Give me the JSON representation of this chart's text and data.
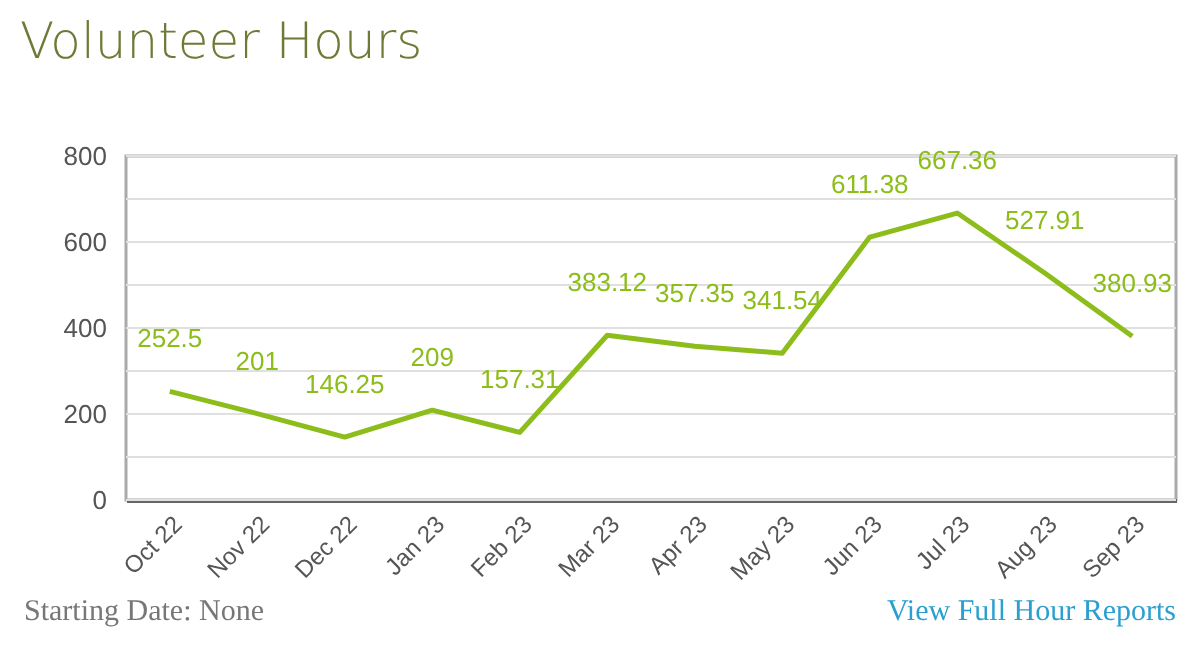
{
  "chart_data": {
    "type": "line",
    "title": "Volunteer Hours",
    "categories": [
      "Oct 22",
      "Nov 22",
      "Dec 22",
      "Jan 23",
      "Feb 23",
      "Mar 23",
      "Apr 23",
      "May 23",
      "Jun 23",
      "Jul 23",
      "Aug 23",
      "Sep 23"
    ],
    "series": [
      {
        "color": "#8cbd1a",
        "values": [
          252.5,
          201,
          146.25,
          209,
          157.31,
          383.12,
          357.35,
          341.54,
          611.38,
          667.36,
          527.91,
          380.93
        ]
      }
    ],
    "ylim": [
      0,
      800
    ],
    "yticks": [
      0,
      {
        "value": 100,
        "label": null
      },
      200,
      {
        "value": 300,
        "label": null
      },
      400,
      {
        "value": 500,
        "label": null
      },
      600,
      {
        "value": 700,
        "label": null
      },
      800
    ],
    "grid": "y",
    "data_labels": true,
    "marker": "none",
    "annotations": [
      "Starting Date: None",
      "View Full Hour Reports"
    ]
  }
}
